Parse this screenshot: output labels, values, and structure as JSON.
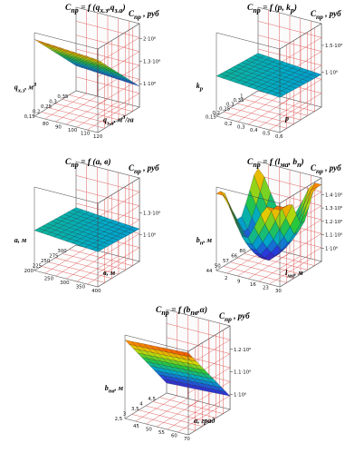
{
  "chart_data": [
    {
      "type": "surface3d",
      "title": "C_пр = f (q_х.з, q_з.а)",
      "title_html": "C<sub>пр</sub> = f (q<sub>х.з</sub>,q<sub>з.а</sub>)",
      "zlabel": "C_пр , руб",
      "zlabel_html": "C<sub>пр</sub> , руб",
      "xlabel": "q_з.а, м³/га",
      "xlabel_html": "q<sub>з.а</sub>, м<sup>3</sup>/га",
      "ylabel": "q_х.з, м³",
      "ylabel_html": "q<sub>х.з</sub>, м<sup>3</sup>",
      "x_ticks": [
        "80",
        "90",
        "100",
        "110",
        "120"
      ],
      "y_ticks": [
        "0,15",
        "0,2",
        "0,25",
        "0,3",
        "0,35"
      ],
      "z_ticks": [
        "1·10⁶",
        "1.3·10⁶",
        "2·10⁶"
      ],
      "z_tick_levels": [
        0.28,
        0.55,
        0.82
      ],
      "surface_type": "plane_y"
    },
    {
      "type": "surface3d",
      "title": "C_пр = f (p, k_р)",
      "title_html": "C<sub>пр</sub> = f (p, k<sub>p</sub>)",
      "zlabel": "C_пр , руб",
      "zlabel_html": "C<sub>пр</sub> , руб",
      "xlabel": "p",
      "xlabel_html": "p",
      "ylabel": "k_р",
      "ylabel_html": "k<sub>p</sub>",
      "x_ticks": [
        "0,2",
        "0,3",
        "0,4",
        "0,5",
        "0,6"
      ],
      "y_ticks": [
        "0,15",
        "0,2",
        "0,25",
        "0,3",
        "0,35",
        "1"
      ],
      "z_ticks": [
        "1·10⁶",
        "1.5·10⁶"
      ],
      "z_tick_levels": [
        0.42,
        0.74
      ],
      "surface_type": "flat_mid"
    },
    {
      "type": "surface3d",
      "title": "C_пр = f (a, в)",
      "title_html": "C<sub>пр</sub> = f (a, в)",
      "zlabel": "C_пр , руб",
      "zlabel_html": "C<sub>пр</sub> , руб",
      "xlabel": "в, м",
      "xlabel_html": "в, м",
      "ylabel": "a, м",
      "ylabel_html": "a, м",
      "x_ticks": [
        "250",
        "300",
        "350",
        "400"
      ],
      "y_ticks": [
        "200",
        "225",
        "250",
        "275",
        "300"
      ],
      "z_ticks": [
        "1·10⁶",
        "1.3·10⁶"
      ],
      "z_tick_levels": [
        0.32,
        0.58
      ],
      "surface_type": "flat_mid"
    },
    {
      "type": "surface3d",
      "title": "C_пр = f (l_ма, b_п)",
      "title_html": "C<sub>пр</sub> = f (l<sub>ма</sub>, b<sub>п</sub>)",
      "zlabel": "C_пр , руб",
      "zlabel_html": "C<sub>пр</sub> , руб",
      "xlabel": "l_ма, м",
      "xlabel_html": "l<sub>ма</sub>, м",
      "ylabel": "b_п, м",
      "ylabel_html": "b<sub>п</sub>, м",
      "x_ticks": [
        "2",
        "9",
        "16",
        "23",
        "30"
      ],
      "y_ticks": [
        "44",
        "50",
        "57",
        "66",
        "80"
      ],
      "z_ticks": [
        "1·10⁶",
        "1.1·10⁶",
        "1.2·10⁶",
        "1.3·10⁶",
        "1.4·10⁶"
      ],
      "z_tick_levels": [
        0.16,
        0.32,
        0.48,
        0.64,
        0.8
      ],
      "surface_type": "valley"
    },
    {
      "type": "surface3d",
      "title": "C_пр = f (b_пв, α)",
      "title_html": "C<sub>пр</sub> = f (b<sub>пв</sub>,α)",
      "zlabel": "C_пр , руб",
      "zlabel_html": "C<sub>пр</sub> , руб",
      "xlabel": "α, град",
      "xlabel_html": "α, град",
      "ylabel": "b_пв, м",
      "ylabel_html": "b<sub>пв</sub>, м",
      "x_ticks": [
        "45",
        "50",
        "55",
        "60",
        "70"
      ],
      "y_ticks": [
        "2,5",
        "3",
        "3,5",
        "4",
        "4,5"
      ],
      "z_ticks": [
        "1·10⁶",
        "1.1·10⁶",
        "1.2·10⁶"
      ],
      "z_tick_levels": [
        0.18,
        0.45,
        0.72
      ],
      "surface_type": "ramp"
    }
  ]
}
